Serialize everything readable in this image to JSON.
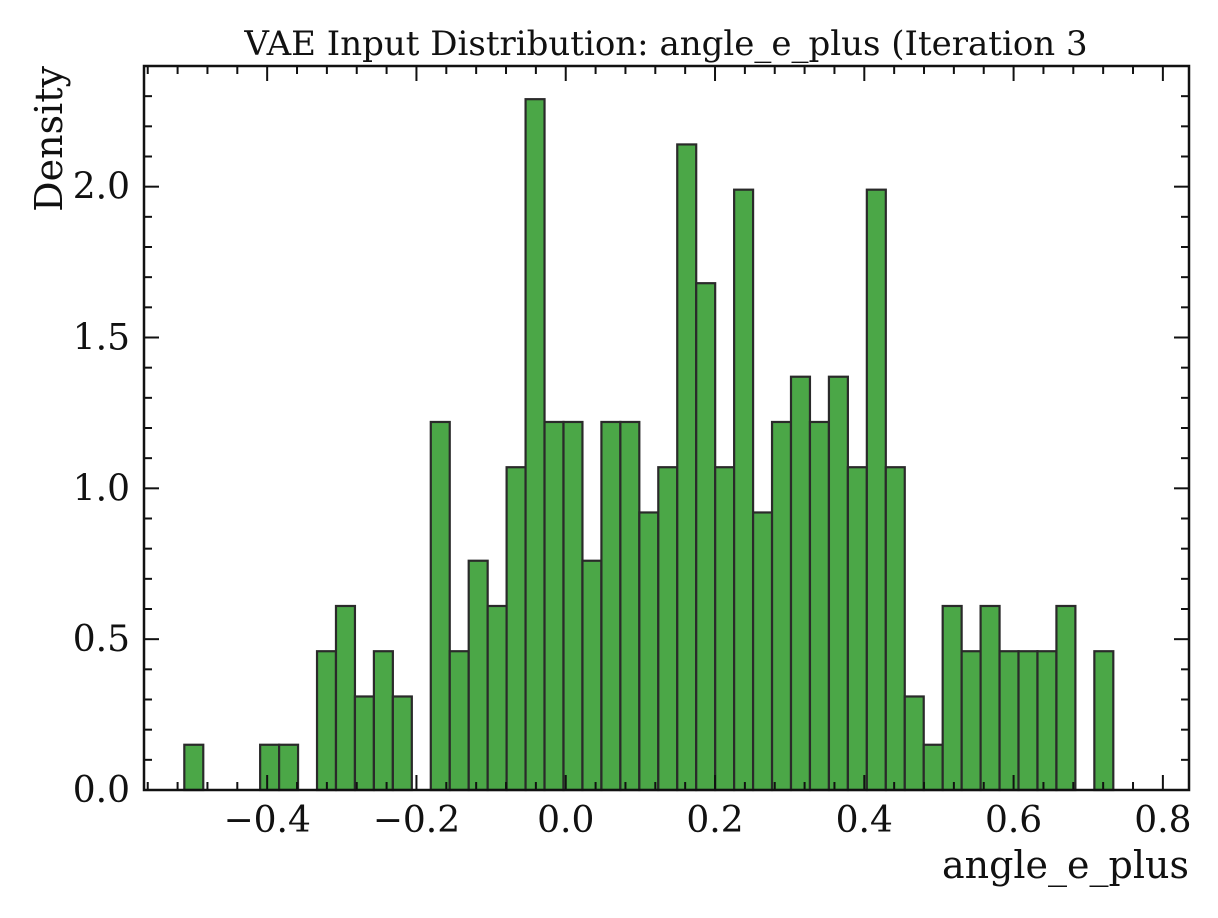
{
  "chart_data": {
    "type": "bar",
    "title": "VAE Input Distribution: angle_e_plus (Iteration 3",
    "xlabel": "angle_e_plus",
    "ylabel": "Density",
    "xlim": [
      -0.565,
      0.835
    ],
    "ylim": [
      0.0,
      2.4
    ],
    "xticks": [
      -0.4,
      -0.2,
      0.0,
      0.2,
      0.4,
      0.6,
      0.8
    ],
    "xtick_labels": [
      "−0.4",
      "−0.2",
      "0.0",
      "0.2",
      "0.4",
      "0.6",
      "0.8"
    ],
    "yticks": [
      0.0,
      0.5,
      1.0,
      1.5,
      2.0
    ],
    "ytick_labels": [
      "0.0",
      "0.5",
      "1.0",
      "1.5",
      "2.0"
    ],
    "x_minor_step": 0.04,
    "y_minor_step": 0.1,
    "bin_start": -0.511,
    "bin_width": 0.0254,
    "values": [
      0.15,
      0,
      0,
      0,
      0.15,
      0.15,
      0,
      0.46,
      0.61,
      0.31,
      0.46,
      0.31,
      0,
      1.22,
      0.46,
      0.76,
      0.61,
      1.07,
      2.29,
      1.22,
      1.22,
      0.76,
      1.22,
      1.22,
      0.92,
      1.07,
      2.14,
      1.68,
      1.07,
      1.99,
      0.92,
      1.22,
      1.37,
      1.22,
      1.37,
      1.07,
      1.99,
      1.07,
      0.31,
      0.15,
      0.61,
      0.46,
      0.61,
      0.46,
      0.46,
      0.46,
      0.61,
      0,
      0.46
    ],
    "colors": {
      "bar_fill": "#4ba747",
      "bar_edge": "#2a2a2a",
      "axis": "#111111"
    },
    "grid": false
  }
}
